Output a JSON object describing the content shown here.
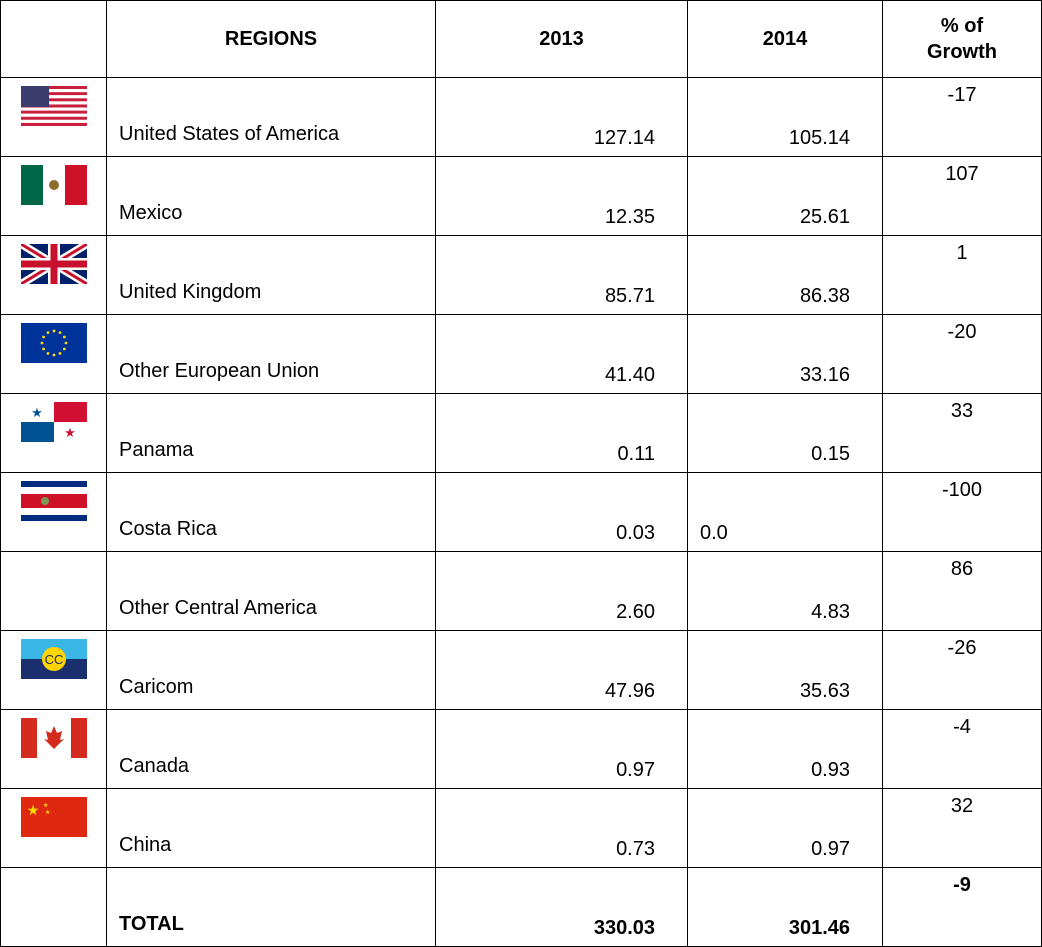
{
  "header": {
    "regions": "REGIONS",
    "y2013": "2013",
    "y2014": "2014",
    "growth": "% of Growth"
  },
  "rows": [
    {
      "region": "United States of America",
      "y2013": "127.14",
      "y2014": "105.14",
      "growth": "-17"
    },
    {
      "region": "Mexico",
      "y2013": "12.35",
      "y2014": "25.61",
      "growth": "107"
    },
    {
      "region": "United Kingdom",
      "y2013": "85.71",
      "y2014": "86.38",
      "growth": "1"
    },
    {
      "region": "Other European Union",
      "y2013": "41.40",
      "y2014": "33.16",
      "growth": "-20"
    },
    {
      "region": "Panama",
      "y2013": "0.11",
      "y2014": "0.15",
      "growth": "33"
    },
    {
      "region": "Costa Rica",
      "y2013": "0.03",
      "y2014": "0.0",
      "growth": "-100"
    },
    {
      "region": "Other Central America",
      "y2013": "2.60",
      "y2014": "4.83",
      "growth": "86"
    },
    {
      "region": "Caricom",
      "y2013": "47.96",
      "y2014": "35.63",
      "growth": "-26"
    },
    {
      "region": "Canada",
      "y2013": "0.97",
      "y2014": "0.93",
      "growth": "-4"
    },
    {
      "region": "China",
      "y2013": "0.73",
      "y2014": "0.97",
      "growth": "32"
    },
    {
      "region": "TOTAL",
      "y2013": "330.03",
      "y2014": "301.46",
      "growth": "-9"
    }
  ]
}
